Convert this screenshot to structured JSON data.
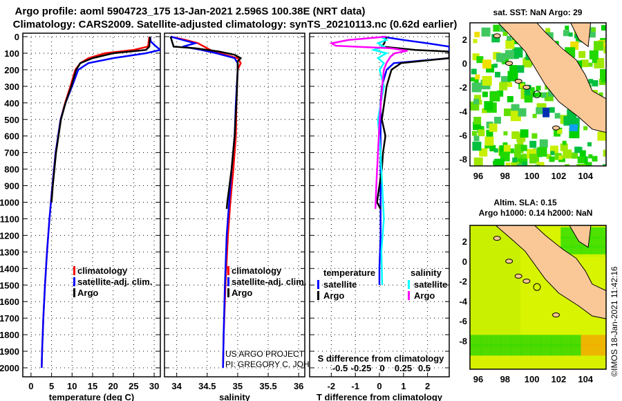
{
  "header": {
    "line1": "Argo profile: aoml 5904723_175 13-Jan-2021 2.596S 100.38E (NRT data)",
    "line2": "Climatology: CARS2009. Satellite-adjusted climatology: synTS_20210113.nc (0.62d earlier)"
  },
  "colors": {
    "climatology": "#ff0000",
    "satellite": "#0000ff",
    "argo": "#000000",
    "s_satellite": "#00ffff",
    "s_argo": "#ff00ff",
    "land": "#fac896"
  },
  "chart_data": [
    {
      "type": "line",
      "id": "temperature",
      "xlabel": "temperature (deg C)",
      "xlim": [
        -2,
        31.5
      ],
      "xticks": [
        0,
        5,
        10,
        15,
        20,
        25,
        30
      ],
      "ylim": [
        2080,
        0
      ],
      "yticks": [
        0,
        100,
        200,
        300,
        400,
        500,
        600,
        700,
        800,
        900,
        1000,
        1100,
        1200,
        1300,
        1400,
        1500,
        1600,
        1700,
        1800,
        1900,
        2000
      ],
      "legend": [
        "climatology",
        "satellite-adj. clim.",
        "Argo"
      ],
      "series": [
        {
          "name": "climatology",
          "color": "#ff0000",
          "depth": [
            0,
            60,
            80,
            100,
            130,
            160,
            200,
            300,
            400,
            500,
            700,
            900,
            1100,
            1300,
            1500,
            1700,
            1900,
            2000
          ],
          "values": [
            28.8,
            28.5,
            25,
            18,
            14,
            12,
            10.8,
            9.6,
            8.3,
            7.2,
            6,
            5.2,
            4.5,
            3.9,
            3.4,
            3,
            2.7,
            2.6
          ]
        },
        {
          "name": "satellite-adj. clim.",
          "color": "#0000ff",
          "depth": [
            0,
            30,
            60,
            80,
            100,
            130,
            160,
            200,
            300,
            400,
            500,
            700,
            900,
            1100,
            1300,
            1500,
            1700,
            1900,
            2000
          ],
          "values": [
            29,
            29.2,
            30.5,
            31.5,
            28,
            20,
            14,
            11.5,
            10,
            8.4,
            7.2,
            6,
            5.2,
            4.5,
            3.9,
            3.4,
            3,
            2.7,
            2.6
          ]
        },
        {
          "name": "Argo",
          "color": "#000000",
          "depth": [
            0,
            60,
            80,
            100,
            130,
            160,
            200,
            300,
            400,
            500,
            700,
            900,
            1000
          ],
          "values": [
            29,
            28.8,
            28,
            20,
            15,
            12,
            11,
            9.8,
            8.4,
            7.3,
            6.1,
            5.3,
            5
          ]
        }
      ]
    },
    {
      "type": "line",
      "id": "salinity",
      "xlabel": "salinity",
      "xlim": [
        33.8,
        36.1
      ],
      "xticks": [
        34,
        34.5,
        35,
        35.5,
        36
      ],
      "ylim": [
        2080,
        0
      ],
      "legend": [
        "climatology",
        "satellite-adj. clim.",
        "Argo"
      ],
      "series": [
        {
          "name": "climatology",
          "color": "#ff0000",
          "depth": [
            0,
            20,
            40,
            60,
            80,
            100,
            130,
            160,
            200,
            400,
            600,
            800,
            1000,
            1200,
            1500,
            1800,
            2000
          ],
          "values": [
            33.9,
            34.15,
            34.35,
            34.45,
            34.55,
            34.7,
            35.0,
            35.05,
            35.0,
            34.98,
            34.97,
            34.93,
            34.88,
            34.84,
            34.8,
            34.77,
            34.76
          ]
        },
        {
          "name": "satellite-adj. clim.",
          "color": "#0000ff",
          "depth": [
            0,
            20,
            40,
            60,
            80,
            100,
            130,
            160,
            200,
            400,
            600,
            800,
            1000,
            1200,
            1500,
            1800,
            2000
          ],
          "values": [
            33.9,
            34.1,
            34.3,
            34.1,
            34.4,
            34.65,
            34.95,
            35.0,
            35.0,
            34.97,
            34.95,
            34.9,
            34.86,
            34.82,
            34.79,
            34.77,
            34.76
          ]
        },
        {
          "name": "Argo",
          "color": "#000000",
          "depth": [
            0,
            60,
            70,
            90,
            110,
            130,
            150,
            200,
            400,
            600,
            800,
            1000,
            1040
          ],
          "values": [
            33.9,
            33.95,
            34.3,
            34.7,
            34.95,
            35.05,
            35.0,
            35.0,
            34.98,
            34.95,
            34.9,
            34.83,
            34.82
          ]
        }
      ],
      "annotations": [
        "US ARGO PROJECT",
        "PI: GREGORY C. JOHNSON"
      ]
    },
    {
      "type": "line",
      "id": "differences",
      "xlabel": "T difference from climatology",
      "xlim": [
        -2.9,
        2.9
      ],
      "xticks": [
        -2,
        -1,
        0,
        1,
        2
      ],
      "x2label": "S difference from climatology",
      "x2ticks": [
        -0.5,
        -0.25,
        0,
        0.25,
        0.5
      ],
      "ylim": [
        2080,
        0
      ],
      "legend": {
        "temperature_header": "temperature",
        "salinity_header": "salinity",
        "t_items": [
          "satellite",
          "Argo"
        ],
        "s_items": [
          "satellite",
          "Argo"
        ]
      },
      "series": [
        {
          "name": "T satellite",
          "color": "#0000ff",
          "axis": "T",
          "depth": [
            0,
            20,
            40,
            60,
            80,
            100,
            130,
            160,
            200,
            300,
            400,
            600,
            800,
            1000,
            1200,
            1400,
            1500
          ],
          "values": [
            0.1,
            1,
            2,
            2.9,
            2.9,
            2.9,
            2.9,
            0.6,
            0.3,
            0.1,
            0.05,
            0.05,
            0.05,
            0.05,
            0.05,
            0,
            0
          ]
        },
        {
          "name": "T Argo",
          "color": "#000000",
          "axis": "T",
          "depth": [
            0,
            40,
            60,
            80,
            90,
            100,
            130,
            160,
            200,
            250,
            300,
            400,
            500,
            600,
            700,
            800,
            900,
            1000,
            1040
          ],
          "values": [
            0.3,
            0.2,
            0.1,
            1.5,
            2.9,
            2.9,
            2.9,
            0.9,
            0.5,
            0.4,
            0.3,
            0.2,
            0.1,
            0.25,
            0.15,
            0.1,
            0,
            -0.1,
            0.05
          ]
        },
        {
          "name": "S satellite",
          "color": "#00ffff",
          "axis": "S",
          "depth": [
            0,
            20,
            40,
            60,
            80,
            100,
            130,
            160,
            200,
            300,
            500,
            700,
            900,
            1100,
            1300,
            1500
          ],
          "values": [
            -0.02,
            0.05,
            -0.05,
            0.02,
            -0.1,
            0.05,
            -0.05,
            0.02,
            -0.03,
            0.02,
            -0.05,
            -0.02,
            0,
            0.02,
            -0.01,
            0
          ]
        },
        {
          "name": "S Argo",
          "color": "#ff00ff",
          "axis": "S",
          "depth": [
            0,
            20,
            40,
            55,
            70,
            85,
            100,
            120,
            160,
            200,
            300,
            500,
            700,
            900,
            1040
          ],
          "values": [
            0.05,
            -0.4,
            -0.6,
            -0.55,
            0.1,
            0.3,
            0.15,
            0.1,
            0.05,
            0.02,
            0,
            -0.03,
            -0.05,
            -0.07,
            -0.08
          ]
        }
      ]
    }
  ],
  "maps": {
    "sst": {
      "title": "sat. SST: NaN Argo: 29",
      "lon_ticks": [
        "96",
        "98",
        "100",
        "102",
        "104"
      ],
      "lat_ticks": [
        "2",
        "0",
        "-2",
        "-4",
        "-6",
        "-8"
      ]
    },
    "sla": {
      "title1": "Altim. SLA: 0.15",
      "title2": "Argo h1000: 0.14 h2000: NaN",
      "lon_ticks": [
        "96",
        "98",
        "100",
        "102",
        "104"
      ],
      "lat_ticks": [
        "2",
        "0",
        "-2",
        "-4",
        "-6",
        "-8"
      ]
    },
    "argo_position": {
      "lon": 100.38,
      "lat": -2.596
    }
  },
  "credit": "©IMOS 18-Jan-2021 11:42:16"
}
